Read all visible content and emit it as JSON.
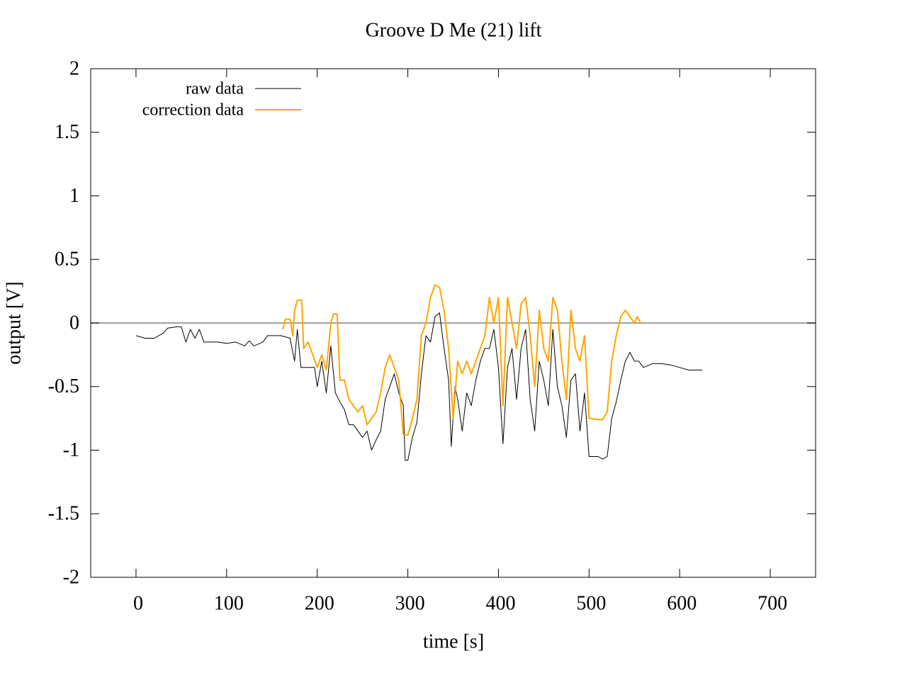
{
  "chart_data": {
    "type": "line",
    "title": "Groove D  Me (21) lift",
    "x_label": "time [s]",
    "y_label": "output [V]",
    "xlim": [
      -50,
      750
    ],
    "ylim": [
      -2,
      2
    ],
    "xticks": [
      0,
      100,
      200,
      300,
      400,
      500,
      600,
      700
    ],
    "yticks": [
      -2,
      -1.5,
      -1,
      -0.5,
      0,
      0.5,
      1,
      1.5,
      2
    ],
    "zeroaxis": true,
    "zeroaxis_color": "#a0a0a0",
    "legend": "top-left",
    "series": [
      {
        "name": "raw data",
        "color": "#000000",
        "line_width": 1,
        "x": [
          0,
          10,
          20,
          30,
          35,
          45,
          50,
          55,
          60,
          65,
          70,
          75,
          90,
          100,
          110,
          120,
          125,
          130,
          140,
          145,
          160,
          170,
          175,
          178,
          182,
          190,
          197,
          200,
          205,
          210,
          215,
          220,
          225,
          230,
          235,
          240,
          245,
          250,
          255,
          260,
          265,
          270,
          275,
          280,
          285,
          290,
          295,
          297,
          300,
          305,
          310,
          315,
          320,
          325,
          330,
          335,
          340,
          345,
          348,
          352,
          355,
          360,
          365,
          370,
          375,
          380,
          385,
          390,
          395,
          400,
          405,
          410,
          415,
          420,
          425,
          430,
          435,
          440,
          445,
          450,
          455,
          460,
          465,
          470,
          475,
          480,
          485,
          490,
          495,
          500,
          510,
          515,
          520,
          525,
          530,
          535,
          540,
          545,
          550,
          555,
          560,
          570,
          580,
          590,
          600,
          610,
          625
        ],
        "values": [
          -0.1,
          -0.12,
          -0.12,
          -0.08,
          -0.04,
          -0.03,
          -0.03,
          -0.15,
          -0.05,
          -0.12,
          -0.05,
          -0.15,
          -0.15,
          -0.16,
          -0.15,
          -0.18,
          -0.14,
          -0.18,
          -0.15,
          -0.1,
          -0.1,
          -0.12,
          -0.3,
          -0.05,
          -0.35,
          -0.35,
          -0.35,
          -0.5,
          -0.3,
          -0.55,
          -0.18,
          -0.55,
          -0.62,
          -0.68,
          -0.8,
          -0.8,
          -0.85,
          -0.9,
          -0.85,
          -1.0,
          -0.92,
          -0.85,
          -0.6,
          -0.5,
          -0.4,
          -0.55,
          -0.65,
          -1.08,
          -1.08,
          -0.9,
          -0.78,
          -0.4,
          -0.1,
          -0.15,
          0.05,
          0.08,
          -0.2,
          -0.45,
          -0.97,
          -0.5,
          -0.6,
          -0.85,
          -0.55,
          -0.65,
          -0.45,
          -0.3,
          -0.2,
          -0.2,
          -0.05,
          -0.35,
          -0.95,
          -0.35,
          -0.2,
          -0.6,
          -0.2,
          -0.05,
          -0.6,
          -0.85,
          -0.3,
          -0.45,
          -0.65,
          -0.05,
          -0.5,
          -0.65,
          -0.9,
          -0.45,
          -0.4,
          -0.85,
          -0.55,
          -1.05,
          -1.05,
          -1.07,
          -1.05,
          -0.75,
          -0.62,
          -0.45,
          -0.3,
          -0.23,
          -0.3,
          -0.3,
          -0.35,
          -0.32,
          -0.32,
          -0.33,
          -0.35,
          -0.37,
          -0.37
        ]
      },
      {
        "name": "correction data",
        "color": "#ffa500",
        "line_width": 2,
        "x": [
          162,
          165,
          170,
          173,
          175,
          178,
          183,
          185,
          190,
          195,
          200,
          205,
          210,
          215,
          218,
          222,
          225,
          230,
          235,
          240,
          245,
          250,
          255,
          260,
          265,
          270,
          275,
          280,
          285,
          290,
          295,
          300,
          305,
          310,
          315,
          320,
          325,
          330,
          335,
          340,
          345,
          350,
          355,
          360,
          365,
          370,
          375,
          380,
          385,
          390,
          395,
          400,
          405,
          410,
          415,
          420,
          425,
          430,
          435,
          440,
          445,
          450,
          455,
          460,
          465,
          470,
          475,
          480,
          485,
          490,
          495,
          500,
          510,
          515,
          520,
          525,
          530,
          535,
          540,
          545,
          550,
          553,
          557
        ],
        "values": [
          -0.05,
          0.03,
          0.03,
          -0.1,
          0.1,
          0.18,
          0.18,
          -0.2,
          -0.15,
          -0.25,
          -0.35,
          -0.25,
          -0.37,
          0.0,
          0.07,
          0.07,
          -0.45,
          -0.45,
          -0.6,
          -0.65,
          -0.7,
          -0.65,
          -0.8,
          -0.75,
          -0.7,
          -0.55,
          -0.35,
          -0.25,
          -0.35,
          -0.45,
          -0.88,
          -0.88,
          -0.75,
          -0.6,
          -0.1,
          0.0,
          0.2,
          0.3,
          0.28,
          0.1,
          -0.2,
          -0.75,
          -0.3,
          -0.4,
          -0.3,
          -0.4,
          -0.3,
          -0.2,
          -0.1,
          0.2,
          0.0,
          0.2,
          -0.65,
          0.2,
          0.0,
          -0.2,
          0.15,
          0.2,
          -0.1,
          -0.5,
          0.1,
          -0.2,
          -0.3,
          0.2,
          0.1,
          -0.3,
          -0.6,
          0.1,
          -0.2,
          -0.3,
          -0.1,
          -0.75,
          -0.76,
          -0.76,
          -0.7,
          -0.3,
          -0.1,
          0.05,
          0.1,
          0.05,
          0.0,
          0.05,
          0.0
        ]
      }
    ]
  }
}
